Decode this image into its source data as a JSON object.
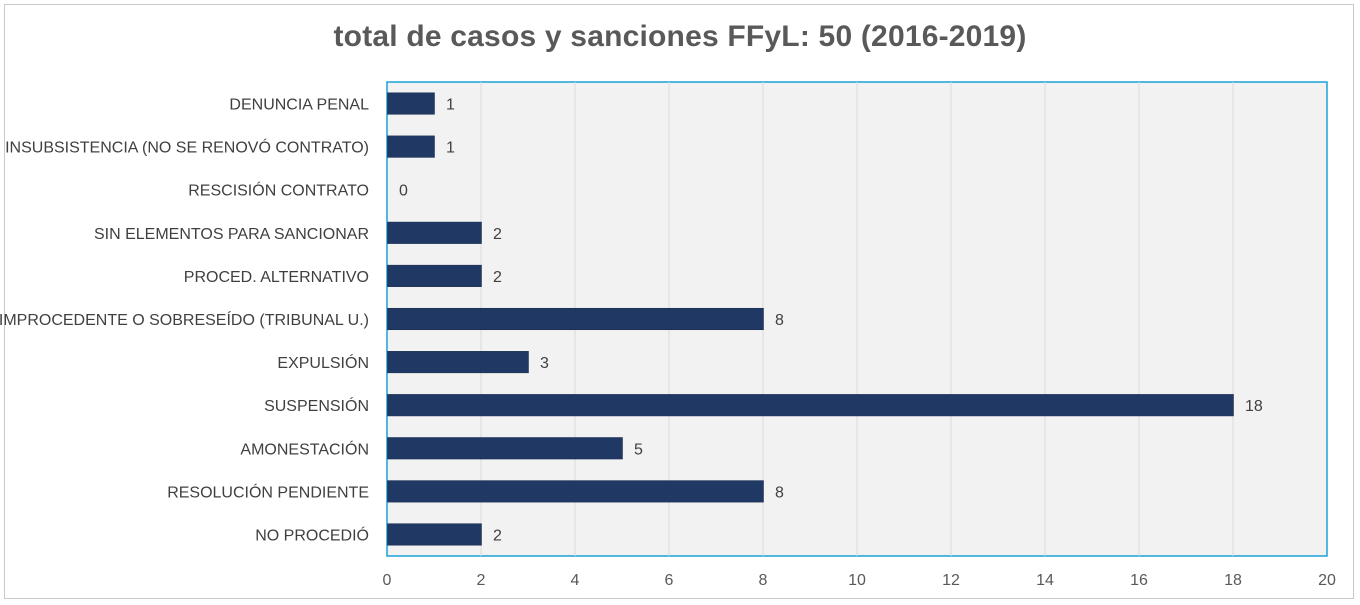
{
  "chart_data": {
    "type": "bar",
    "orientation": "horizontal",
    "title": "total de casos y sanciones FFyL: 50 (2016-2019)",
    "categories": [
      "DENUNCIA PENAL",
      "INSUBSISTENCIA (NO SE RENOVÓ CONTRATO)",
      "RESCISIÓN CONTRATO",
      "SIN ELEMENTOS PARA SANCIONAR",
      "PROCED. ALTERNATIVO",
      "IMPROCEDENTE O SOBRESEÍDO (TRIBUNAL U.)",
      "EXPULSIÓN",
      "SUSPENSIÓN",
      "AMONESTACIÓN",
      "RESOLUCIÓN PENDIENTE",
      "NO PROCEDIÓ"
    ],
    "values": [
      1,
      1,
      0,
      2,
      2,
      8,
      3,
      18,
      5,
      8,
      2
    ],
    "xlim": [
      0,
      20
    ],
    "xticks": [
      0,
      2,
      4,
      6,
      8,
      10,
      12,
      14,
      16,
      18,
      20
    ],
    "data_labels": true,
    "grid": "vertical",
    "legend": "none",
    "colors": {
      "bar": "#1f3864",
      "plot_background": "#f2f2f2",
      "plot_border": "#1ba1d6",
      "grid": "#d9d9d9",
      "title": "#595959"
    }
  }
}
